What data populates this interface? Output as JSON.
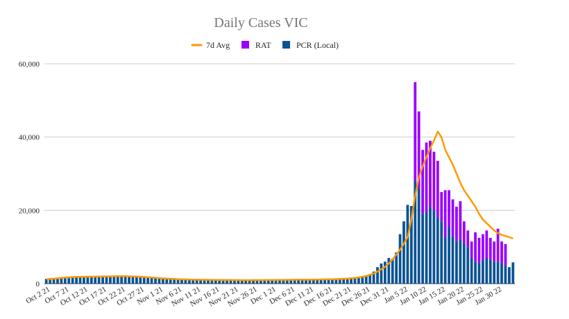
{
  "chart_data": {
    "type": "bar",
    "title": "Daily Cases VIC",
    "legend": {
      "position": "top",
      "entries": [
        {
          "key": "avg",
          "label": "7d Avg",
          "color": "#ff9900",
          "kind": "line"
        },
        {
          "key": "rat",
          "label": "RAT",
          "color": "#9900ff",
          "kind": "box"
        },
        {
          "key": "pcr",
          "label": "PCR (Local)",
          "color": "#0b5394",
          "kind": "box"
        }
      ]
    },
    "start_date": "Oct 2 21",
    "days": 125,
    "x_tick_labels": [
      "Oct 2 21",
      "Oct 7 21",
      "Oct 12 21",
      "Oct 17 21",
      "Oct 22 21",
      "Oct 27 21",
      "Nov 1 21",
      "Nov 6 21",
      "Nov 11 21",
      "Nov 16 21",
      "Nov 21 21",
      "Nov 26 21",
      "Dec 1 21",
      "Dec 6 21",
      "Dec 11 21",
      "Dec 16 21",
      "Dec 21 21",
      "Dec 26 21",
      "Dec 31 21",
      "Jan 5 22",
      "Jan 10 22",
      "Jan 15 22",
      "Jan 20 22",
      "Jan 25 22",
      "Jan 30 22"
    ],
    "y_ticks": [
      0,
      20000,
      40000,
      60000
    ],
    "y_tick_labels": [
      "0",
      "20,000",
      "40,000",
      "60,000"
    ],
    "ylim": [
      0,
      60000
    ],
    "grid": true,
    "series": [
      {
        "name": "PCR (Local)",
        "color": "#0b5394",
        "values": [
          1300,
          1050,
          1200,
          1400,
          1500,
          1550,
          1650,
          1700,
          1800,
          1850,
          1900,
          1800,
          2050,
          1950,
          2000,
          2200,
          2100,
          1950,
          1950,
          2000,
          1900,
          1850,
          1900,
          2000,
          1950,
          1850,
          1700,
          1800,
          1650,
          1550,
          1450,
          1350,
          1300,
          1250,
          1200,
          1100,
          1150,
          1050,
          1000,
          1000,
          1050,
          1000,
          950,
          1000,
          1050,
          1000,
          950,
          1000,
          950,
          1000,
          900,
          950,
          850,
          900,
          900,
          950,
          1000,
          900,
          950,
          1000,
          1000,
          1050,
          1100,
          1050,
          1000,
          1050,
          1100,
          1050,
          1000,
          1100,
          1150,
          1100,
          1200,
          1100,
          1150,
          1200,
          1250,
          1300,
          1350,
          1300,
          1400,
          1600,
          1800,
          1900,
          2000,
          2200,
          2600,
          3300,
          4500,
          5500,
          6000,
          7000,
          6800,
          8500,
          13500,
          17000,
          21500,
          21200,
          28000,
          26000,
          19000,
          19500,
          21000,
          20000,
          18000,
          17000,
          12500,
          15500,
          13000,
          11500,
          12000,
          11000,
          10000,
          7000,
          6000,
          5500,
          6500,
          7000,
          6500,
          6000,
          6000,
          5500,
          5000,
          4500,
          5800
        ]
      },
      {
        "name": "RAT",
        "color": "#9900ff",
        "values": [
          0,
          0,
          0,
          0,
          0,
          0,
          0,
          0,
          0,
          0,
          0,
          0,
          0,
          0,
          0,
          0,
          0,
          0,
          0,
          0,
          0,
          0,
          0,
          0,
          0,
          0,
          0,
          0,
          0,
          0,
          0,
          0,
          0,
          0,
          0,
          0,
          0,
          0,
          0,
          0,
          0,
          0,
          0,
          0,
          0,
          0,
          0,
          0,
          0,
          0,
          0,
          0,
          0,
          0,
          0,
          0,
          0,
          0,
          0,
          0,
          0,
          0,
          0,
          0,
          0,
          0,
          0,
          0,
          0,
          0,
          0,
          0,
          0,
          0,
          0,
          0,
          0,
          0,
          0,
          0,
          0,
          0,
          0,
          0,
          0,
          0,
          0,
          0,
          0,
          0,
          0,
          0,
          0,
          0,
          0,
          0,
          0,
          0,
          27000,
          21000,
          17500,
          19000,
          18000,
          16000,
          15500,
          8000,
          13000,
          10000,
          10000,
          9500,
          10500,
          6000,
          4500,
          4500,
          8000,
          7000,
          7000,
          7500,
          6000,
          5500,
          9000,
          6000,
          5800
        ]
      },
      {
        "name": "7d Avg",
        "color": "#ff9900",
        "values": [
          1200,
          1300,
          1350,
          1450,
          1550,
          1650,
          1720,
          1790,
          1830,
          1860,
          1880,
          1890,
          1900,
          1920,
          1930,
          1940,
          1960,
          1990,
          2010,
          2020,
          2030,
          2020,
          1990,
          1960,
          1920,
          1880,
          1820,
          1750,
          1680,
          1600,
          1520,
          1440,
          1380,
          1320,
          1270,
          1220,
          1180,
          1150,
          1120,
          1100,
          1080,
          1060,
          1050,
          1040,
          1030,
          1020,
          1010,
          1000,
          990,
          980,
          970,
          960,
          950,
          950,
          950,
          960,
          970,
          970,
          980,
          990,
          1000,
          1010,
          1020,
          1030,
          1040,
          1050,
          1060,
          1070,
          1080,
          1090,
          1100,
          1110,
          1120,
          1140,
          1160,
          1180,
          1200,
          1230,
          1270,
          1320,
          1380,
          1460,
          1560,
          1700,
          1880,
          2100,
          2400,
          2800,
          3300,
          3900,
          4600,
          5500,
          6600,
          7900,
          9300,
          10900,
          12700,
          17500,
          24000,
          29000,
          32000,
          34500,
          37000,
          39000,
          41500,
          40000,
          36500,
          34500,
          32500,
          30000,
          27500,
          25500,
          24000,
          22500,
          21000,
          19000,
          17500,
          16500,
          15500,
          14500,
          13800,
          13300,
          13000,
          12700,
          12300
        ]
      }
    ]
  }
}
